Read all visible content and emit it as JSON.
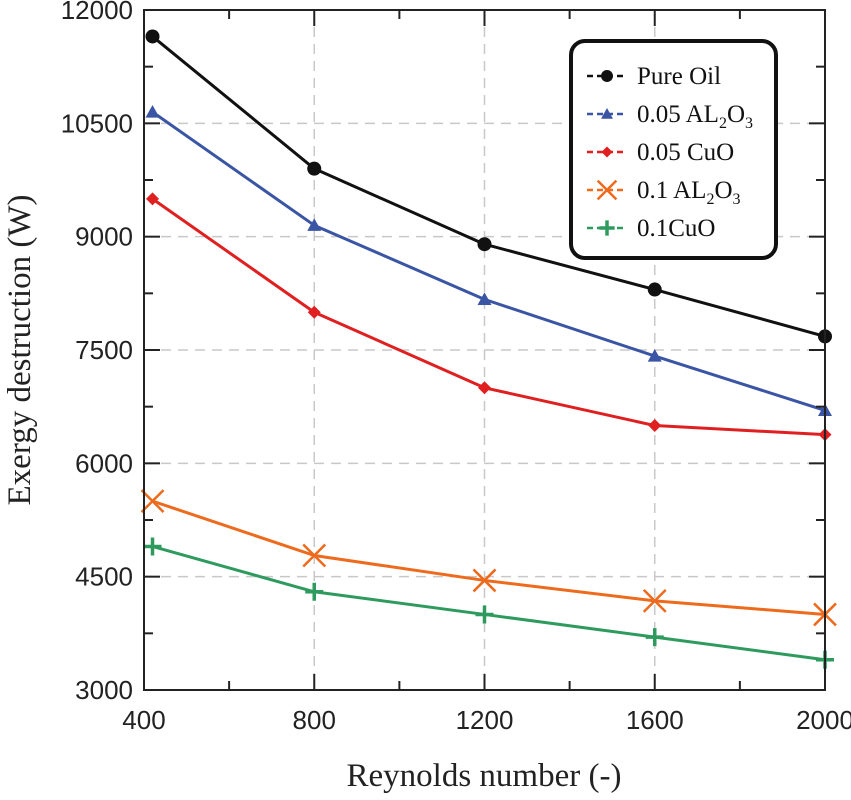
{
  "chart_data": {
    "type": "line",
    "title": "",
    "xlabel": "Reynolds number (-)",
    "ylabel": "Exergy destruction (W)",
    "xlim": [
      400,
      2000
    ],
    "ylim": [
      3000,
      12000
    ],
    "xticks": [
      400,
      800,
      1200,
      1600,
      2000
    ],
    "yticks": [
      3000,
      4500,
      6000,
      7500,
      9000,
      10500,
      12000
    ],
    "grid": true,
    "legend_position": "top-right",
    "x": [
      420,
      800,
      1200,
      1600,
      2000
    ],
    "series": [
      {
        "name": "Pure Oil",
        "base": "Pure Oil",
        "sub1": "",
        "mid": "",
        "sub2": "",
        "color": "#111111",
        "marker": "circle",
        "values": [
          11650,
          9900,
          8900,
          8300,
          7680
        ]
      },
      {
        "name": "0.05 AL2O3",
        "base": "0.05 AL",
        "sub1": "2",
        "mid": "O",
        "sub2": "3",
        "color": "#3a55a4",
        "marker": "triangle",
        "values": [
          10650,
          9150,
          8170,
          7420,
          6700
        ]
      },
      {
        "name": "0.05 CuO",
        "base": "0.05 CuO",
        "sub1": "",
        "mid": "",
        "sub2": "",
        "color": "#e02020",
        "marker": "diamond",
        "values": [
          9500,
          8000,
          7000,
          6500,
          6380
        ]
      },
      {
        "name": "0.1 AL2O3",
        "base": "0.1 AL",
        "sub1": "2",
        "mid": "O",
        "sub2": "3",
        "color": "#ee6a1c",
        "marker": "x",
        "values": [
          5500,
          4780,
          4450,
          4180,
          4000
        ]
      },
      {
        "name": "0.1CuO",
        "base": "0.1CuO",
        "sub1": "",
        "mid": "",
        "sub2": "",
        "color": "#2e9a5e",
        "marker": "plus",
        "values": [
          4900,
          4300,
          4000,
          3700,
          3400
        ]
      }
    ]
  }
}
